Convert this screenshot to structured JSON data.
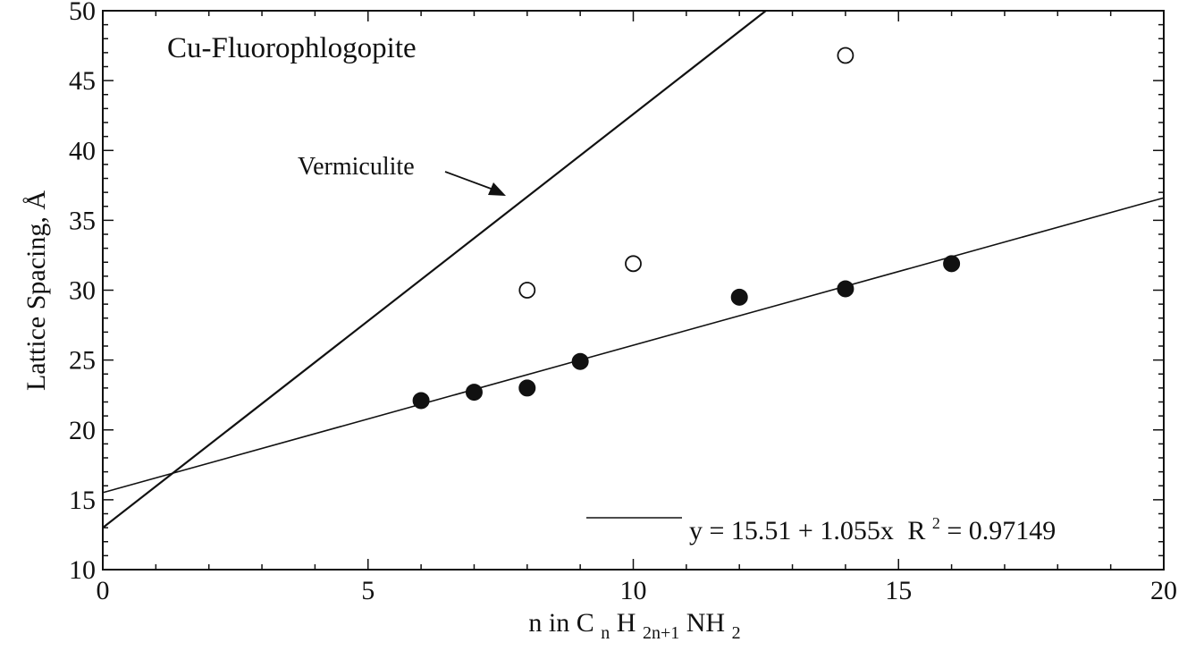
{
  "chart_data": {
    "type": "scatter",
    "title": "Cu-Fluorophlogopite",
    "xlabel": {
      "prefix": "n in C",
      "s1": "n",
      "m1": "H",
      "s2": "2n+1",
      "m2": "NH",
      "s3": "2"
    },
    "ylabel": "Lattice Spacing, Å",
    "xlim": [
      0,
      20
    ],
    "ylim": [
      10,
      50
    ],
    "xticks": [
      0,
      5,
      10,
      15,
      20
    ],
    "yticks": [
      10,
      15,
      20,
      25,
      30,
      35,
      40,
      45,
      50
    ],
    "x_minor_step": 1,
    "y_minor_step": 1,
    "series": [
      {
        "marker": "filled-circle",
        "x": [
          6,
          7,
          8,
          9,
          12,
          14,
          16
        ],
        "y": [
          22.1,
          22.7,
          23.0,
          24.9,
          29.5,
          30.1,
          31.9
        ]
      },
      {
        "marker": "open-circle",
        "x": [
          8,
          10,
          14
        ],
        "y": [
          30.0,
          31.9,
          46.8
        ]
      }
    ],
    "lines": [
      {
        "label": "Vermiculite",
        "x": [
          0,
          12.5
        ],
        "y": [
          13.0,
          50.0
        ]
      },
      {
        "x": [
          0,
          20
        ],
        "y": [
          15.51,
          36.61
        ]
      }
    ],
    "annotations": {
      "vermiculite": "Vermiculite",
      "legend_equation": "y = 15.51 + 1.055x",
      "legend_r2_label": "R",
      "legend_r2_sup": "2",
      "legend_r2_value": "= 0.97149"
    },
    "legend_placement": "bottom-right",
    "grid": false,
    "colors": {
      "ink": "#111111",
      "background": "#ffffff"
    }
  }
}
